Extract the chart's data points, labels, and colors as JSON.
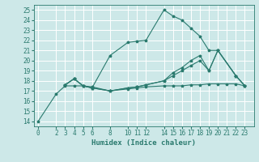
{
  "xlabel": "Humidex (Indice chaleur)",
  "xlim": [
    -0.5,
    24
  ],
  "ylim": [
    13.5,
    25.5
  ],
  "yticks": [
    14,
    15,
    16,
    17,
    18,
    19,
    20,
    21,
    22,
    23,
    24,
    25
  ],
  "xticks": [
    0,
    2,
    3,
    4,
    5,
    6,
    8,
    10,
    11,
    12,
    14,
    15,
    16,
    17,
    18,
    19,
    20,
    21,
    22,
    23
  ],
  "bg_color": "#cde8e8",
  "grid_color": "#ffffff",
  "line_color": "#2a7a6e",
  "lines": [
    {
      "x": [
        0,
        2,
        3,
        4,
        5,
        6,
        8,
        10,
        11,
        12,
        14,
        15,
        16,
        17,
        18,
        19,
        20,
        21,
        22,
        23
      ],
      "y": [
        14.0,
        16.7,
        17.5,
        17.5,
        17.5,
        17.4,
        17.0,
        17.2,
        17.3,
        17.4,
        17.5,
        17.5,
        17.5,
        17.6,
        17.6,
        17.7,
        17.7,
        17.7,
        17.7,
        17.5
      ]
    },
    {
      "x": [
        3,
        4,
        5,
        6,
        8,
        10,
        11,
        12,
        14,
        15,
        16,
        17,
        18,
        19,
        20,
        22,
        23
      ],
      "y": [
        17.6,
        18.2,
        17.5,
        17.3,
        17.0,
        17.3,
        17.4,
        17.6,
        18.0,
        18.5,
        19.0,
        19.5,
        20.0,
        19.0,
        21.0,
        18.5,
        17.5
      ]
    },
    {
      "x": [
        3,
        4,
        5,
        6,
        8,
        10,
        11,
        12,
        14,
        15,
        16,
        17,
        18,
        19,
        20,
        22,
        23
      ],
      "y": [
        17.6,
        18.2,
        17.5,
        17.3,
        20.5,
        21.8,
        21.9,
        22.0,
        25.0,
        24.4,
        24.0,
        23.2,
        22.4,
        21.0,
        21.0,
        18.5,
        17.5
      ]
    },
    {
      "x": [
        3,
        4,
        5,
        6,
        8,
        10,
        11,
        12,
        14,
        15,
        16,
        17,
        18,
        19,
        20,
        22,
        23
      ],
      "y": [
        17.6,
        18.2,
        17.5,
        17.3,
        17.0,
        17.3,
        17.4,
        17.6,
        18.0,
        18.8,
        19.3,
        20.0,
        20.5,
        19.0,
        21.0,
        18.5,
        17.5
      ]
    }
  ]
}
